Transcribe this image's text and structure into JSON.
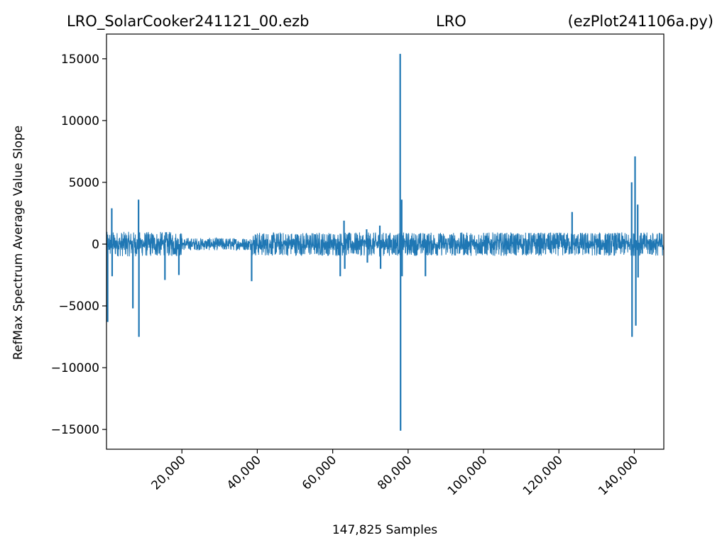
{
  "chart_data": {
    "type": "line",
    "title_left": "LRO_SolarCooker241121_00.ezb",
    "title_center": "LRO",
    "title_right": "(ezPlot241106a.py)",
    "xlabel": "147,825 Samples",
    "ylabel": "RefMax Spectrum Average Value Slope",
    "xlim": [
      0,
      147825
    ],
    "ylim": [
      -16600,
      17000
    ],
    "x_ticks": [
      20000,
      40000,
      60000,
      80000,
      100000,
      120000,
      140000
    ],
    "x_tick_labels": [
      "20,000",
      "40,000",
      "60,000",
      "80,000",
      "100,000",
      "120,000",
      "140,000"
    ],
    "y_ticks": [
      15000,
      10000,
      5000,
      0,
      -5000,
      -10000,
      -15000
    ],
    "y_tick_labels": [
      "15000",
      "10000",
      "5000",
      "0",
      "−5000",
      "−10000",
      "−15000"
    ],
    "grid": false,
    "line_color": "#1f77b4",
    "noise_segments": [
      {
        "x_start": 0,
        "x_end": 20000,
        "amplitude": 1000
      },
      {
        "x_start": 20000,
        "x_end": 38500,
        "amplitude": 500
      },
      {
        "x_start": 38500,
        "x_end": 147825,
        "amplitude": 950
      }
    ],
    "spikes": [
      {
        "x": 300,
        "y": -6300
      },
      {
        "x": 1400,
        "y": 2900
      },
      {
        "x": 1500,
        "y": -2600
      },
      {
        "x": 7000,
        "y": -5200
      },
      {
        "x": 8500,
        "y": 3600
      },
      {
        "x": 8600,
        "y": -7500
      },
      {
        "x": 15500,
        "y": -2900
      },
      {
        "x": 19200,
        "y": -2500
      },
      {
        "x": 38500,
        "y": -3000
      },
      {
        "x": 62000,
        "y": -2600
      },
      {
        "x": 63000,
        "y": 1900
      },
      {
        "x": 63200,
        "y": -2000
      },
      {
        "x": 69000,
        "y": 1200
      },
      {
        "x": 69200,
        "y": -1500
      },
      {
        "x": 72500,
        "y": 1500
      },
      {
        "x": 72700,
        "y": -2000
      },
      {
        "x": 77900,
        "y": 15400
      },
      {
        "x": 78000,
        "y": -15100
      },
      {
        "x": 78300,
        "y": 3600
      },
      {
        "x": 78400,
        "y": -2600
      },
      {
        "x": 84600,
        "y": -2600
      },
      {
        "x": 123500,
        "y": 2600
      },
      {
        "x": 139300,
        "y": 5000
      },
      {
        "x": 139400,
        "y": -7500
      },
      {
        "x": 140200,
        "y": 7100
      },
      {
        "x": 140400,
        "y": -6600
      },
      {
        "x": 140900,
        "y": 3200
      },
      {
        "x": 141000,
        "y": -2700
      }
    ]
  }
}
